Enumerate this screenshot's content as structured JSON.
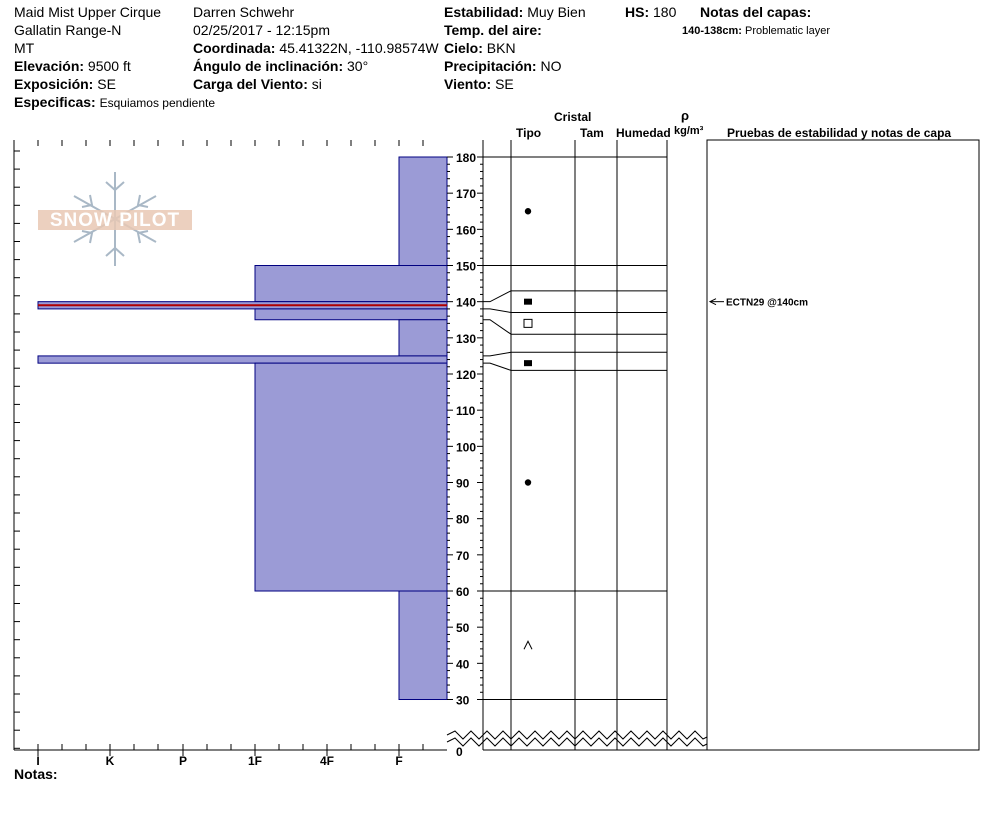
{
  "header": {
    "location": "Maid Mist Upper Cirque",
    "range": "Gallatin Range-N",
    "state": "MT",
    "elevation_label": "Elevación:",
    "elevation_value": "9500 ft",
    "aspect_label": "Exposición:",
    "aspect_value": "SE",
    "specifics_label": "Especificas:",
    "specifics_value": "Esquiamos pendiente",
    "observer": "Darren Schwehr",
    "datetime": "02/25/2017 - 12:15pm",
    "coord_label": "Coordinada:",
    "coord_value": "45.41322N, -110.98574W",
    "slope_label": "Ángulo de inclinación:",
    "slope_value": "30°",
    "wind_load_label": "Carga del Viento:",
    "wind_load_value": "si",
    "stability_label": "Estabilidad:",
    "stability_value": "Muy Bien",
    "air_temp_label": "Temp. del aire:",
    "sky_label": "Cielo:",
    "sky_value": "BKN",
    "precip_label": "Precipitación:",
    "precip_value": "NO",
    "wind_label": "Viento:",
    "wind_value": "SE",
    "hs_label": "HS:",
    "hs_value": "180",
    "layer_notes_label": "Notas del capas:",
    "layer_note_range": "140-138cm:",
    "layer_note_text": "Problematic layer"
  },
  "logo_text": "SNOW PILOT",
  "columns": {
    "cristal": "Cristal",
    "tipo": "Tipo",
    "tam": "Tam",
    "humedad": "Humedad",
    "rho": "ρ",
    "density_unit": "kg/m³",
    "stability_notes": "Pruebas de estabilidad y notas de capa"
  },
  "footer": {
    "notes_label": "Notas:"
  },
  "colors": {
    "layer_fill": "#9b9bd6",
    "layer_stroke": "#000080",
    "weak_layer_line": "#b00000"
  },
  "chart_data": {
    "type": "snow-profile",
    "hardness_scale": [
      "I",
      "K",
      "P",
      "1F",
      "4F",
      "F"
    ],
    "depth_ticks": [
      180,
      170,
      160,
      150,
      140,
      130,
      120,
      110,
      100,
      90,
      80,
      70,
      60,
      50,
      40,
      30
    ],
    "depth_zero_label": "0",
    "hardness_layers": [
      {
        "top": 180,
        "bottom": 150,
        "hardness": "F"
      },
      {
        "top": 150,
        "bottom": 140,
        "hardness": "1F"
      },
      {
        "top": 140,
        "bottom": 138,
        "hardness": "I"
      },
      {
        "top": 138,
        "bottom": 135,
        "hardness": "1F"
      },
      {
        "top": 135,
        "bottom": 125,
        "hardness": "F"
      },
      {
        "top": 125,
        "bottom": 123,
        "hardness": "I"
      },
      {
        "top": 123,
        "bottom": 60,
        "hardness": "1F"
      },
      {
        "top": 60,
        "bottom": 30,
        "hardness": "F"
      }
    ],
    "weak_layer_depth": 139,
    "crystal_table_lines": [
      180,
      150,
      143,
      137,
      131,
      126,
      121,
      60,
      30
    ],
    "grain_symbols": [
      {
        "depth": 165,
        "symbol": "round"
      },
      {
        "depth": 140,
        "symbol": "facet-filled"
      },
      {
        "depth": 134,
        "symbol": "facet-open"
      },
      {
        "depth": 123,
        "symbol": "facet-filled"
      },
      {
        "depth": 90,
        "symbol": "round"
      },
      {
        "depth": 45,
        "symbol": "depth-hoar"
      }
    ],
    "stability_tests": [
      {
        "depth": 140,
        "label": "ECTN29 @140cm"
      }
    ]
  }
}
